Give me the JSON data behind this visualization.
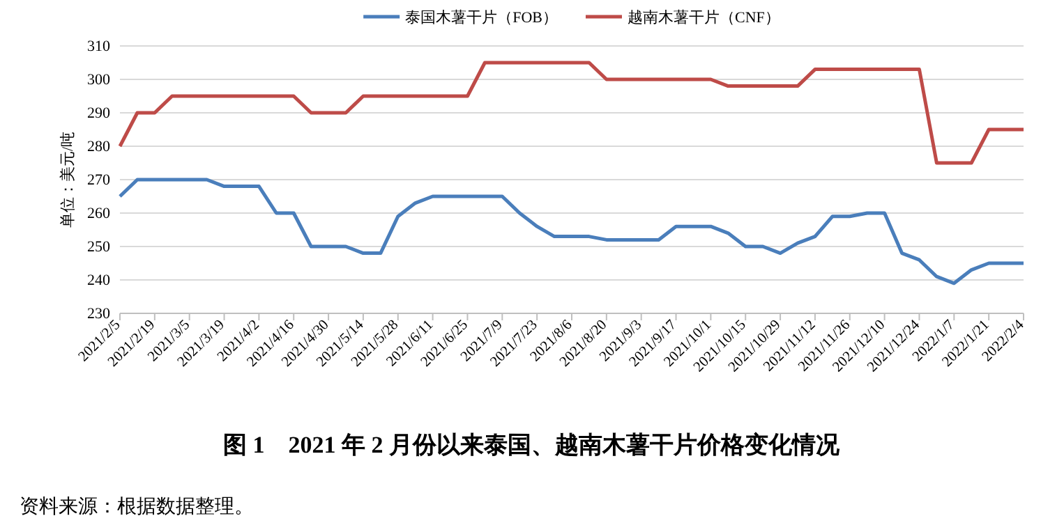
{
  "chart_data": {
    "type": "line",
    "title": "图 1　2021 年 2 月份以来泰国、越南木薯干片价格变化情况",
    "ylabel": "单位：美元/吨",
    "annotations": [
      "资料来源：根据数据整理。"
    ],
    "categories": [
      "2021/2/5",
      null,
      "2021/2/19",
      null,
      "2021/3/5",
      null,
      "2021/3/19",
      null,
      "2021/4/2",
      null,
      "2021/4/16",
      null,
      "2021/4/30",
      null,
      "2021/5/14",
      null,
      "2021/5/28",
      null,
      "2021/6/11",
      null,
      "2021/6/25",
      null,
      "2021/7/9",
      null,
      "2021/7/23",
      null,
      "2021/8/6",
      null,
      "2021/8/20",
      null,
      "2021/9/3",
      null,
      "2021/9/17",
      null,
      "2021/10/1",
      null,
      "2021/10/15",
      null,
      "2021/10/29",
      null,
      "2021/11/12",
      null,
      "2021/11/26",
      null,
      "2021/12/10",
      null,
      "2021/12/24",
      null,
      "2022/1/7",
      null,
      "2022/1/21",
      null,
      "2022/2/4"
    ],
    "series": [
      {
        "name": "泰国木薯干片（FOB）",
        "color": "#4a7ebb",
        "values": [
          265,
          270,
          270,
          270,
          270,
          270,
          268,
          268,
          268,
          260,
          260,
          250,
          250,
          250,
          248,
          248,
          259,
          263,
          265,
          265,
          265,
          265,
          265,
          260,
          256,
          253,
          253,
          253,
          252,
          252,
          252,
          252,
          256,
          256,
          256,
          254,
          250,
          250,
          248,
          251,
          253,
          259,
          259,
          260,
          260,
          248,
          246,
          241,
          239,
          243,
          245,
          245,
          245
        ]
      },
      {
        "name": "越南木薯干片（CNF）",
        "color": "#be4b48",
        "values": [
          280,
          290,
          290,
          295,
          295,
          295,
          295,
          295,
          295,
          295,
          295,
          290,
          290,
          290,
          295,
          295,
          295,
          295,
          295,
          295,
          295,
          305,
          305,
          305,
          305,
          305,
          305,
          305,
          300,
          300,
          300,
          300,
          300,
          300,
          300,
          298,
          298,
          298,
          298,
          298,
          303,
          303,
          303,
          303,
          303,
          303,
          303,
          275,
          275,
          275,
          285,
          285,
          285
        ]
      }
    ],
    "ylim": [
      230,
      310
    ],
    "yticks": [
      230,
      240,
      250,
      260,
      270,
      280,
      290,
      300,
      310
    ],
    "grid": "y",
    "legend": "top",
    "marker": "none",
    "line_style": "solid"
  }
}
